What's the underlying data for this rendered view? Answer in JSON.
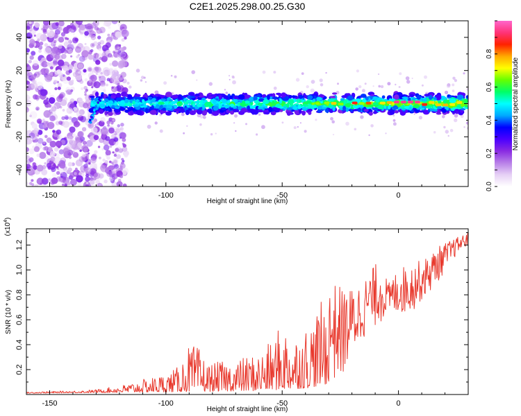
{
  "figure_title": "C2E1.2025.298.00.25.G30",
  "colors": {
    "snr_line": "#e8382c",
    "frame": "#000000",
    "background": "#ffffff"
  },
  "chart_data": [
    {
      "id": "spectrogram",
      "type": "heatmap",
      "title": "",
      "xlabel": "Height of straight line (km)",
      "ylabel": "Frequency (Hz)",
      "xlim": [
        -160,
        30
      ],
      "ylim": [
        -50,
        50
      ],
      "x_ticks": [
        -150,
        -100,
        -50,
        0
      ],
      "y_ticks": [
        -40,
        -20,
        0,
        20,
        40
      ],
      "colorbar": {
        "label": "Normalized spectral amplitude",
        "range": [
          0,
          1
        ],
        "ticks": [
          0.0,
          0.2,
          0.4,
          0.6,
          0.8
        ],
        "colormap": [
          "#ffffff",
          "#e6d0f5",
          "#b87fe8",
          "#8a2be2",
          "#4b00ff",
          "#0000ff",
          "#00aaff",
          "#00ffff",
          "#00ff66",
          "#66ff00",
          "#ffff00",
          "#ffaa00",
          "#ff2200",
          "#ff3377",
          "#ff66cc"
        ]
      },
      "features": [
        {
          "name": "broadband noise region",
          "x_range": [
            -160,
            -117
          ],
          "amplitude": 0.1
        },
        {
          "name": "signal band",
          "x_range": [
            -132,
            30
          ],
          "center_freq_hz": 0,
          "half_width_hz": 4
        },
        {
          "name": "strongest return",
          "x_range": [
            -5,
            8
          ],
          "center_freq_hz": 1,
          "amplitude": 0.95
        }
      ]
    },
    {
      "id": "snr",
      "type": "line",
      "title": "",
      "xlabel": "Height of straight line (km)",
      "ylabel": "SNR (10 * v/v)",
      "y_multiplier": "(x10",
      "y_multiplier_exp": "4",
      "y_multiplier_close": ")",
      "xlim": [
        -160,
        30
      ],
      "ylim": [
        0,
        1.33
      ],
      "x_ticks": [
        -150,
        -100,
        -50,
        0
      ],
      "y_ticks": [
        0.2,
        0.4,
        0.6,
        0.8,
        1.0,
        1.2
      ],
      "y_tick_labels": [
        "0.2",
        "0.4",
        "0.6",
        "0.8",
        "1.0",
        "1.2"
      ],
      "series": [
        {
          "name": "SNR",
          "envelope_points": [
            {
              "x": -160,
              "y": 0.02
            },
            {
              "x": -140,
              "y": 0.03
            },
            {
              "x": -130,
              "y": 0.04
            },
            {
              "x": -120,
              "y": 0.07
            },
            {
              "x": -110,
              "y": 0.12
            },
            {
              "x": -100,
              "y": 0.17
            },
            {
              "x": -95,
              "y": 0.22
            },
            {
              "x": -90,
              "y": 0.4
            },
            {
              "x": -86,
              "y": 0.38
            },
            {
              "x": -82,
              "y": 0.25
            },
            {
              "x": -70,
              "y": 0.28
            },
            {
              "x": -60,
              "y": 0.34
            },
            {
              "x": -55,
              "y": 0.42
            },
            {
              "x": -50,
              "y": 0.58
            },
            {
              "x": -45,
              "y": 0.48
            },
            {
              "x": -40,
              "y": 0.55
            },
            {
              "x": -33,
              "y": 0.75
            },
            {
              "x": -28,
              "y": 0.9
            },
            {
              "x": -22,
              "y": 0.84
            },
            {
              "x": -15,
              "y": 0.92
            },
            {
              "x": -9,
              "y": 1.07
            },
            {
              "x": -4,
              "y": 0.9
            },
            {
              "x": 0,
              "y": 1.02
            },
            {
              "x": 6,
              "y": 1.05
            },
            {
              "x": 12,
              "y": 1.1
            },
            {
              "x": 18,
              "y": 1.2
            },
            {
              "x": 25,
              "y": 1.26
            },
            {
              "x": 30,
              "y": 1.3
            }
          ],
          "baseline_points": [
            {
              "x": -160,
              "y": 0.01
            },
            {
              "x": -100,
              "y": 0.02
            },
            {
              "x": -60,
              "y": 0.03
            },
            {
              "x": -40,
              "y": 0.05
            },
            {
              "x": -25,
              "y": 0.1
            },
            {
              "x": -15,
              "y": 0.45
            },
            {
              "x": -5,
              "y": 0.62
            },
            {
              "x": 5,
              "y": 0.65
            },
            {
              "x": 15,
              "y": 0.85
            },
            {
              "x": 25,
              "y": 1.12
            },
            {
              "x": 30,
              "y": 1.2
            }
          ]
        }
      ]
    }
  ]
}
